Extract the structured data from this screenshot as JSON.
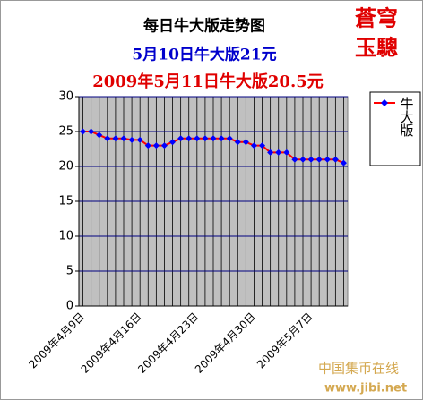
{
  "chart_data": {
    "type": "line",
    "title": "每日牛大版走势图",
    "subtitle": "5月10日牛大版21元",
    "subtitle2": "2009年5月11日牛大版20.5元",
    "logo": [
      "蒼穹",
      "玉驄"
    ],
    "watermark": [
      "中国集币在线",
      "www.jibi.net"
    ],
    "categories": [
      "2009年4月9日",
      null,
      null,
      null,
      null,
      null,
      null,
      "2009年4月16日",
      null,
      null,
      null,
      null,
      null,
      null,
      "2009年4月23日",
      null,
      null,
      null,
      null,
      null,
      null,
      "2009年4月30日",
      null,
      null,
      null,
      null,
      null,
      null,
      "2009年5月7日",
      null,
      null,
      null,
      null
    ],
    "series": [
      {
        "name": "牛大版",
        "color": "#ff0000",
        "marker_color": "#0000ff",
        "values": [
          25,
          25,
          24.5,
          24,
          24,
          24,
          23.8,
          23.8,
          23,
          23,
          23,
          23.5,
          24,
          24,
          24,
          24,
          24,
          24,
          24,
          23.5,
          23.5,
          23,
          23,
          22,
          22,
          22,
          21,
          21,
          21,
          21,
          21,
          21,
          20.5
        ]
      }
    ],
    "ylim": [
      0,
      30
    ],
    "yticks": [
      0,
      5,
      10,
      15,
      20,
      25,
      30
    ],
    "grid": true,
    "legend": "right"
  }
}
